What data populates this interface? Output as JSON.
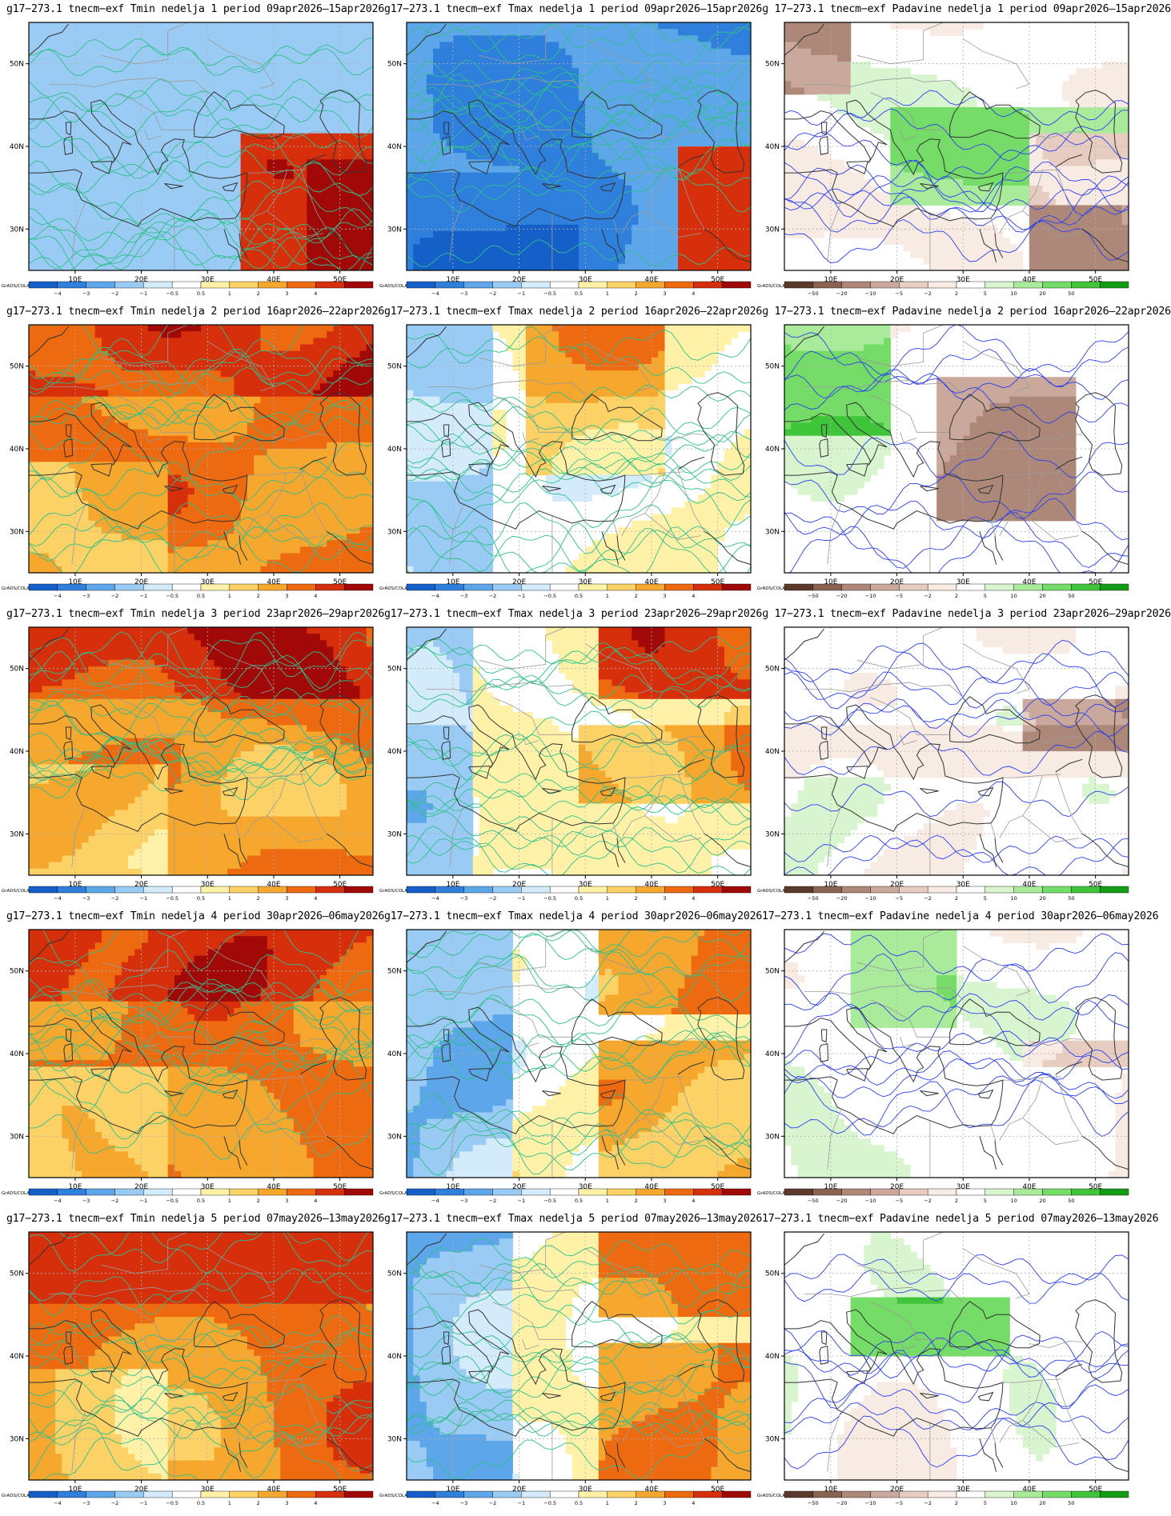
{
  "rows": [
    {
      "week": "1",
      "period": "09apr2026–15apr2026"
    },
    {
      "week": "2",
      "period": "16apr2026–22apr2026"
    },
    {
      "week": "3",
      "period": "23apr2026–29apr2026"
    },
    {
      "week": "4",
      "period": "30apr2026–06may2026"
    },
    {
      "week": "5",
      "period": "07may2026–13may2026"
    }
  ],
  "panels": [
    {
      "title": "g17−273.1 tnecm−exf Tmin nedelja 1 period 09apr2026–15apr2026",
      "var": "tmin",
      "scheme": "blue"
    },
    {
      "title": "g17−273.1 tnecm−exf Tmax nedelja 1 period 09apr2026–15apr2026",
      "var": "tmax",
      "scheme": "deepblue"
    },
    {
      "title": "ɡ 17−273.1 tnecm−exf Padavine nedelja 1 period 09apr2026–15apr2026",
      "var": "precip",
      "scheme": "brownfront"
    },
    {
      "title": "g17−273.1 tnecm−exf Tmin nedelja 2 period 16apr2026–22apr2026",
      "var": "tmin",
      "scheme": "red"
    },
    {
      "title": "g17−273.1 tnecm−exf Tmax nedelja 2 period 16apr2026–22apr2026",
      "var": "tmax",
      "scheme": "mixed"
    },
    {
      "title": "ɡ 17−273.1 tnecm−exf Padavine nedelja 2 period 16apr2026–22apr2026",
      "var": "precip",
      "scheme": "greenwest"
    },
    {
      "title": "g17−273.1 tnecm−exf Tmin nedelja 3 period 23apr2026–29apr2026",
      "var": "tmin",
      "scheme": "red"
    },
    {
      "title": "g17−273.1 tnecm−exf Tmax nedelja 3 period 23apr2026–29apr2026",
      "var": "tmax",
      "scheme": "mixedwarm"
    },
    {
      "title": "ɡ 17−273.1 tnecm−exf Padavine nedelja 3 period 23apr2026–29apr2026",
      "var": "precip",
      "scheme": "lightbrown"
    },
    {
      "title": "g17−273.1 tnecm−exf Tmin nedelja 4 period 30apr2026–06may2026",
      "var": "tmin",
      "scheme": "red"
    },
    {
      "title": "g17−273.1 tnecm−exf Tmax nedelja 4 period 30apr2026–06may2026",
      "var": "tmax",
      "scheme": "mixedcool"
    },
    {
      "title": "17−273.1 tnecm−exf Padavine nedelja 4 period 30apr2026–06may2026",
      "var": "precip",
      "scheme": "lightgreen"
    },
    {
      "title": "g17−273.1 tnecm−exf Tmin nedelja 5 period 07may2026–13may2026",
      "var": "tmin",
      "scheme": "red"
    },
    {
      "title": "g17−273.1 tnecm−exf Tmax nedelja 5 period 07may2026–13may2026",
      "var": "tmax",
      "scheme": "mixedcool"
    },
    {
      "title": "17−273.1 tnecm−exf Padavine nedelja 5 period 07may2026–13may2026",
      "var": "precip",
      "scheme": "greenmid"
    }
  ],
  "axes": {
    "lon_ticks": [
      "10E",
      "20E",
      "30E",
      "40E",
      "50E"
    ],
    "lat_ticks": [
      "50N",
      "40N",
      "30N"
    ]
  },
  "colorbars": {
    "temp": {
      "labels": [
        "−4",
        "−3",
        "−2",
        "−1",
        "−0.5",
        "0.5",
        "1",
        "2",
        "3",
        "4"
      ],
      "colors": [
        "#1560c8",
        "#2f7fdc",
        "#5ea6ea",
        "#9acbf4",
        "#d3ebfb",
        "#ffffff",
        "#fff2a8",
        "#fcd267",
        "#f5a72e",
        "#ee6a10",
        "#d62f0c",
        "#a10808"
      ]
    },
    "precip": {
      "labels": [
        "−50",
        "−20",
        "−10",
        "−5",
        "−2",
        "2",
        "5",
        "10",
        "20",
        "50"
      ],
      "colors": [
        "#5c3a2b",
        "#8a6352",
        "#ad8878",
        "#caa89b",
        "#e7cdc1",
        "#f7ebe4",
        "#ffffff",
        "#d8f5cf",
        "#a9eb9a",
        "#74dc67",
        "#3fc43a",
        "#159c17"
      ]
    }
  },
  "grads_label": "GrADS/COLA",
  "colors": {
    "border": "#000000",
    "coast": "#333333",
    "country": "#9a9a9a",
    "contour_temp": "#2ec08a",
    "contour_precip": "#2b3ff0",
    "gridline": "#b0b0b0"
  }
}
